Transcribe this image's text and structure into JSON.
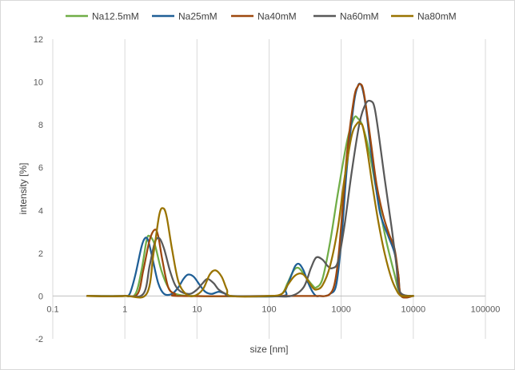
{
  "chart_data": {
    "type": "line",
    "title": "",
    "xlabel": "size [nm]",
    "ylabel": "intensity [%]",
    "x_scale": "log",
    "xlim": [
      0.1,
      100000
    ],
    "ylim": [
      -2,
      12
    ],
    "x_ticks": [
      "0.1",
      "1",
      "10",
      "100",
      "1000",
      "10000",
      "100000"
    ],
    "y_ticks": [
      "-2",
      "0",
      "2",
      "4",
      "6",
      "8",
      "10",
      "12"
    ],
    "grid": "vertical",
    "legend_position": "top",
    "series": [
      {
        "name": "Na12.5mM",
        "color": "#70ad47",
        "x": [
          0.3,
          1.0,
          1.4,
          1.7,
          2.0,
          2.2,
          2.6,
          3.2,
          4.0,
          5.0,
          10,
          100,
          150,
          180,
          220,
          260,
          320,
          400,
          450,
          550,
          700,
          900,
          1200,
          1500,
          1700,
          2000,
          2500,
          3200,
          4200,
          5500,
          6200,
          7000,
          10000
        ],
        "values": [
          0,
          0,
          0.1,
          1.2,
          2.6,
          2.8,
          2.4,
          1.2,
          0.4,
          0.1,
          0,
          0,
          0.1,
          0.6,
          1.2,
          1.3,
          0.9,
          0.5,
          0.4,
          0.8,
          2.5,
          4.8,
          7.2,
          8.3,
          8.3,
          7.9,
          6.6,
          4.6,
          2.6,
          1.0,
          0.3,
          0,
          0
        ]
      },
      {
        "name": "Na25mM",
        "color": "#1f5f96",
        "x": [
          0.3,
          1.0,
          1.1,
          1.2,
          1.4,
          1.7,
          1.9,
          2.1,
          2.4,
          2.9,
          3.5,
          4.5,
          5.5,
          6.5,
          7.5,
          9.0,
          11,
          13,
          16,
          20,
          25,
          30,
          150,
          170,
          200,
          230,
          260,
          300,
          350,
          400,
          450,
          500,
          600,
          700,
          850,
          1000,
          1200,
          1500,
          1700,
          1850,
          2000,
          2200,
          2500,
          3000,
          3500,
          4500,
          5500,
          6200,
          6800,
          10000
        ],
        "values": [
          0,
          0,
          0,
          0.2,
          1.0,
          2.3,
          2.7,
          2.6,
          1.8,
          0.6,
          0.1,
          0.1,
          0.4,
          0.8,
          1.0,
          0.9,
          0.5,
          0.2,
          0.1,
          0.2,
          0.1,
          0,
          0,
          0.3,
          0.9,
          1.4,
          1.5,
          1.2,
          0.6,
          0.2,
          0,
          0,
          0,
          0.1,
          0.5,
          2.5,
          6.0,
          9.0,
          9.8,
          9.9,
          9.6,
          8.8,
          7.2,
          5.2,
          3.8,
          2.8,
          2.0,
          1.0,
          0,
          0
        ]
      },
      {
        "name": "Na40mM",
        "color": "#9e480e",
        "x": [
          0.3,
          1.0,
          1.5,
          1.8,
          2.2,
          2.6,
          2.9,
          3.3,
          4.0,
          5.0,
          6.0,
          150,
          200,
          300,
          400,
          500,
          600,
          700,
          800,
          900,
          1000,
          1200,
          1500,
          1700,
          1850,
          2000,
          2200,
          2600,
          3100,
          3800,
          4600,
          5500,
          6200,
          6800,
          10000
        ],
        "values": [
          0,
          0,
          0.1,
          1.2,
          2.6,
          3.1,
          2.8,
          1.7,
          0.4,
          0.1,
          0,
          0,
          0,
          0,
          0,
          0,
          0,
          0.1,
          0.5,
          1.6,
          3.3,
          6.6,
          9.2,
          9.8,
          9.9,
          9.7,
          8.9,
          7.1,
          5.2,
          3.8,
          2.9,
          2.2,
          1.0,
          0,
          0
        ]
      },
      {
        "name": "Na60mM",
        "color": "#595959",
        "x": [
          0.3,
          1.0,
          1.8,
          2.2,
          2.6,
          3.0,
          3.5,
          4.2,
          5.0,
          6.0,
          8.0,
          10,
          12,
          14,
          17,
          20,
          25,
          30,
          100,
          200,
          300,
          380,
          450,
          550,
          650,
          750,
          900,
          1100,
          1400,
          1800,
          2200,
          2600,
          2900,
          3300,
          4000,
          5000,
          5800,
          6500,
          10000
        ],
        "values": [
          0,
          0,
          0.1,
          1.4,
          2.5,
          2.7,
          2.2,
          1.2,
          0.5,
          0.2,
          0.1,
          0.3,
          0.6,
          0.8,
          0.6,
          0.3,
          0.1,
          0,
          0,
          0,
          0.4,
          1.3,
          1.8,
          1.7,
          1.4,
          1.3,
          1.6,
          3.2,
          5.8,
          8.1,
          9.0,
          9.1,
          8.8,
          7.6,
          5.5,
          3.2,
          1.5,
          0.2,
          0
        ]
      },
      {
        "name": "Na80mM",
        "color": "#997300",
        "x": [
          0.3,
          1.0,
          2.0,
          2.5,
          3.0,
          3.4,
          3.8,
          4.5,
          5.5,
          7.0,
          9.0,
          12,
          15,
          18,
          22,
          26,
          30,
          100,
          150,
          180,
          220,
          260,
          300,
          350,
          400,
          450,
          550,
          700,
          900,
          1100,
          1400,
          1700,
          1850,
          2000,
          2300,
          2700,
          3300,
          4000,
          5000,
          6000,
          6500,
          7000,
          10000
        ],
        "values": [
          0,
          0,
          0.1,
          2.0,
          3.8,
          4.1,
          3.7,
          2.2,
          0.7,
          0.1,
          0,
          0.3,
          1.0,
          1.2,
          0.9,
          0.3,
          0,
          0,
          0.1,
          0.5,
          0.9,
          1.05,
          1.0,
          0.7,
          0.4,
          0.3,
          0.5,
          1.4,
          3.2,
          5.4,
          7.5,
          8.1,
          8.05,
          7.9,
          6.8,
          5.2,
          3.4,
          2.0,
          0.8,
          0.2,
          0.05,
          0,
          0
        ]
      }
    ]
  }
}
